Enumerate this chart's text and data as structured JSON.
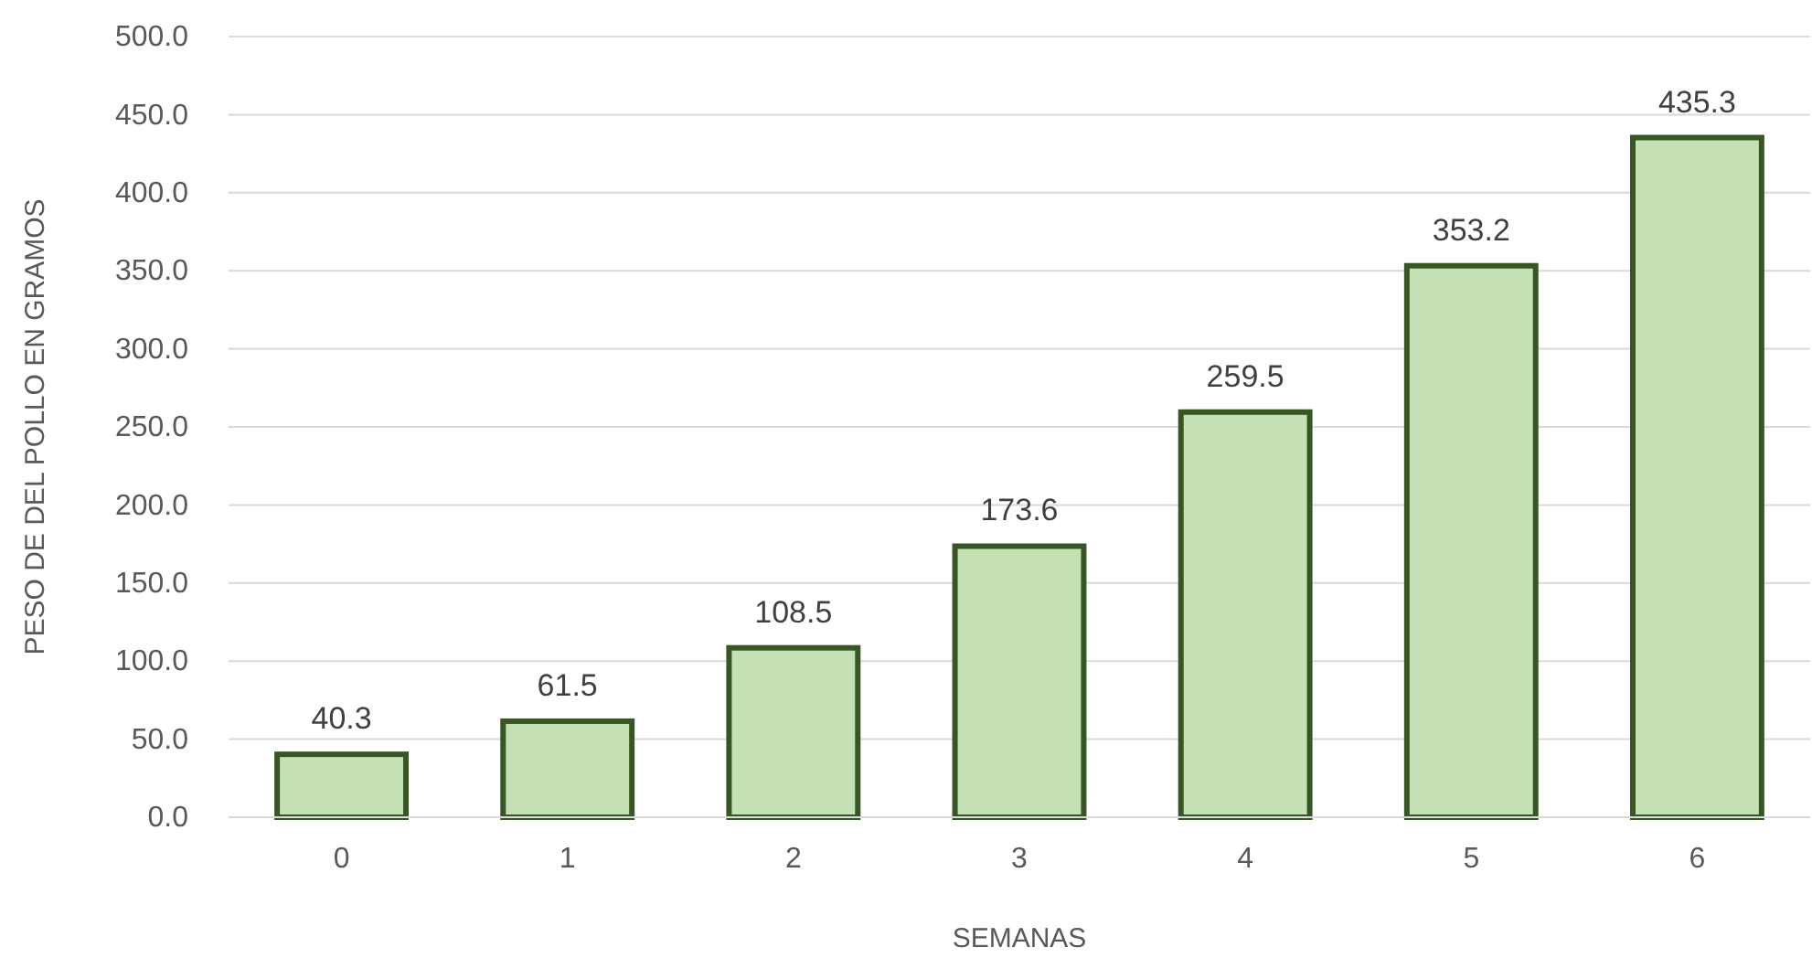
{
  "chart_data": {
    "type": "bar",
    "xlabel": "SEMANAS",
    "ylabel": "PESO DE DEL POLLO EN GRAMOS",
    "categories": [
      "0",
      "1",
      "2",
      "3",
      "4",
      "5",
      "6"
    ],
    "values": [
      40.3,
      61.5,
      108.5,
      173.6,
      259.5,
      353.2,
      435.3
    ],
    "color": "#c5e0b4",
    "ylim": [
      0,
      500
    ],
    "yticks": [
      {
        "value": 0,
        "label": "0.0"
      },
      {
        "value": 50,
        "label": "50.0"
      },
      {
        "value": 100,
        "label": "100.0"
      },
      {
        "value": 150,
        "label": "150.0"
      },
      {
        "value": 200,
        "label": "200.0"
      },
      {
        "value": 250,
        "label": "250.0"
      },
      {
        "value": 300,
        "label": "300.0"
      },
      {
        "value": 350,
        "label": "350.0"
      },
      {
        "value": 400,
        "label": "400.0"
      },
      {
        "value": 450,
        "label": "450.0"
      },
      {
        "value": 500,
        "label": "500.0"
      }
    ],
    "grid": "y",
    "data_labels": true
  }
}
